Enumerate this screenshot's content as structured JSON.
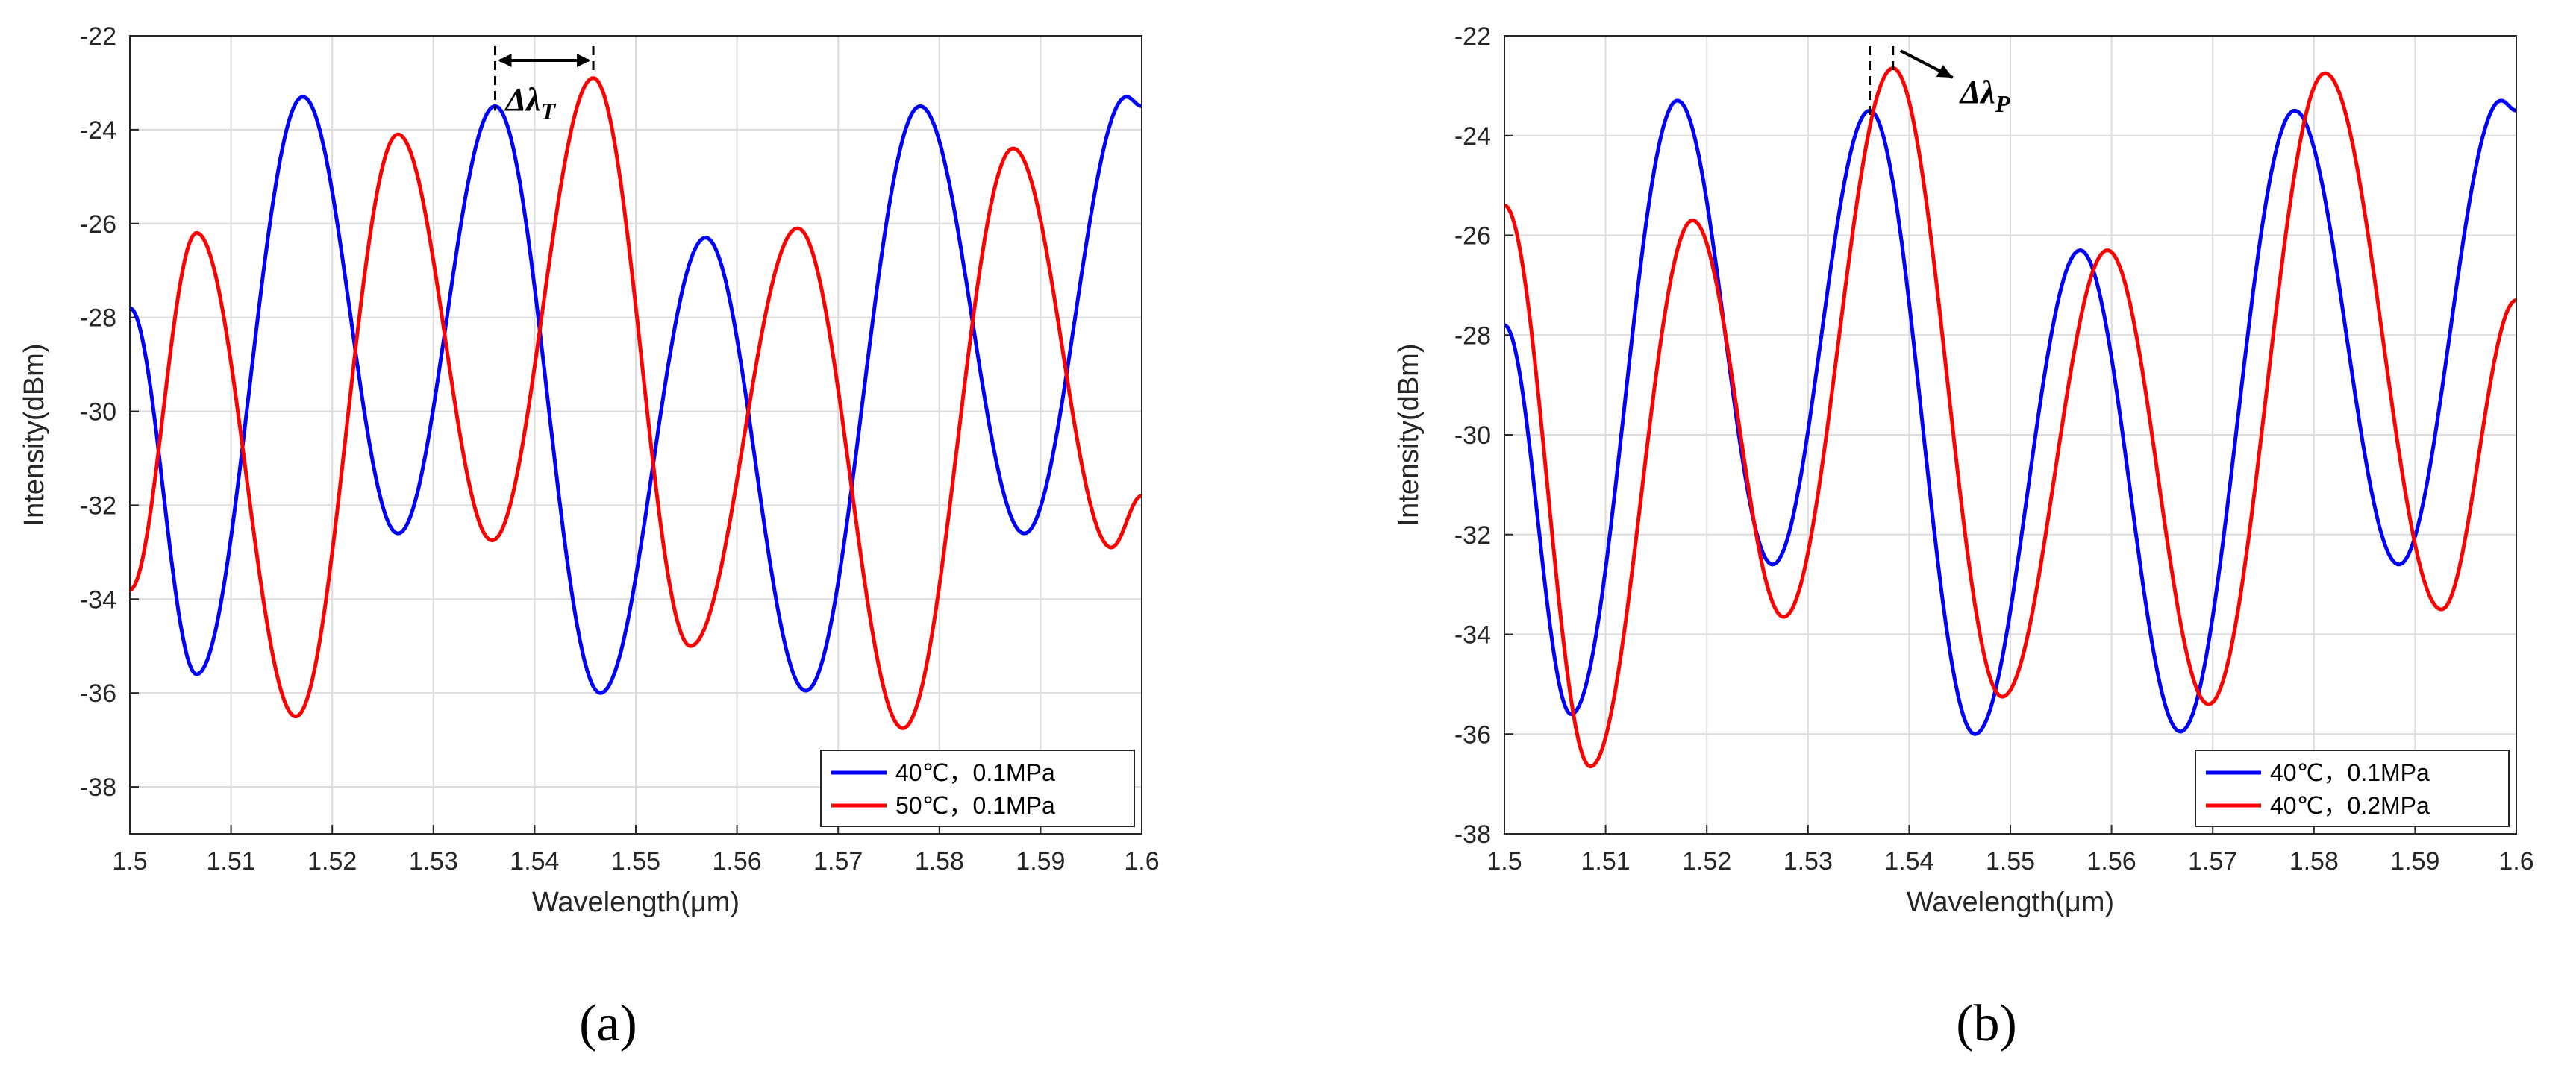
{
  "chart_data": [
    {
      "type": "line",
      "panel_label": "(a)",
      "xlabel": "Wavelength(μm)",
      "ylabel": "Intensity(dBm)",
      "xlim": [
        1.5,
        1.6
      ],
      "ylim": [
        -39,
        -22
      ],
      "xticks": [
        "1.5",
        "1.51",
        "1.52",
        "1.53",
        "1.54",
        "1.55",
        "1.56",
        "1.57",
        "1.58",
        "1.59",
        "1.6"
      ],
      "yticks": [
        "-38",
        "-36",
        "-34",
        "-32",
        "-30",
        "-28",
        "-26",
        "-24",
        "-22"
      ],
      "grid": true,
      "legend_position": "bottom-right",
      "annotation": {
        "text_main": "Δλ",
        "text_sub": "T"
      },
      "series": [
        {
          "name": "40℃，0.1MPa",
          "color": "#0000ff",
          "points": [
            [
              1.5,
              -27.8
            ],
            [
              1.5066,
              -35.6
            ],
            [
              1.5171,
              -23.3
            ],
            [
              1.5265,
              -32.6
            ],
            [
              1.5361,
              -23.5
            ],
            [
              1.5465,
              -36.0
            ],
            [
              1.5569,
              -26.3
            ],
            [
              1.5668,
              -35.95
            ],
            [
              1.5781,
              -23.5
            ],
            [
              1.5884,
              -32.6
            ],
            [
              1.5985,
              -23.3
            ],
            [
              1.6,
              -23.5
            ]
          ]
        },
        {
          "name": "50℃，0.1MPa",
          "color": "#ff0000",
          "points": [
            [
              1.5,
              -33.8
            ],
            [
              1.5066,
              -26.2
            ],
            [
              1.5164,
              -36.5
            ],
            [
              1.5265,
              -24.1
            ],
            [
              1.5358,
              -32.75
            ],
            [
              1.5458,
              -22.9
            ],
            [
              1.5554,
              -35.0
            ],
            [
              1.566,
              -26.1
            ],
            [
              1.5764,
              -36.75
            ],
            [
              1.5873,
              -24.4
            ],
            [
              1.597,
              -32.9
            ],
            [
              1.6,
              -31.8
            ]
          ]
        }
      ]
    },
    {
      "type": "line",
      "panel_label": "(b)",
      "xlabel": "Wavelength(μm)",
      "ylabel": "Intensity(dBm)",
      "xlim": [
        1.5,
        1.6
      ],
      "ylim": [
        -38,
        -22
      ],
      "xticks": [
        "1.5",
        "1.51",
        "1.52",
        "1.53",
        "1.54",
        "1.55",
        "1.56",
        "1.57",
        "1.58",
        "1.59",
        "1.6"
      ],
      "yticks": [
        "-38",
        "-36",
        "-34",
        "-32",
        "-30",
        "-28",
        "-26",
        "-24",
        "-22"
      ],
      "grid": true,
      "legend_position": "bottom-right",
      "annotation": {
        "text_main": "Δλ",
        "text_sub": "P"
      },
      "series": [
        {
          "name": "40℃，0.1MPa",
          "color": "#0000ff",
          "points": [
            [
              1.5,
              -27.8
            ],
            [
              1.5066,
              -35.6
            ],
            [
              1.5171,
              -23.3
            ],
            [
              1.5265,
              -32.6
            ],
            [
              1.5361,
              -23.5
            ],
            [
              1.5465,
              -36.0
            ],
            [
              1.5569,
              -26.3
            ],
            [
              1.5668,
              -35.95
            ],
            [
              1.5781,
              -23.5
            ],
            [
              1.5884,
              -32.6
            ],
            [
              1.5985,
              -23.3
            ],
            [
              1.6,
              -23.5
            ]
          ]
        },
        {
          "name": "40℃，0.2MPa",
          "color": "#ff0000",
          "points": [
            [
              1.5,
              -25.4
            ],
            [
              1.5085,
              -36.65
            ],
            [
              1.5186,
              -25.7
            ],
            [
              1.5276,
              -33.65
            ],
            [
              1.5384,
              -22.65
            ],
            [
              1.5492,
              -35.25
            ],
            [
              1.5596,
              -26.3
            ],
            [
              1.5696,
              -35.4
            ],
            [
              1.5811,
              -22.75
            ],
            [
              1.5926,
              -33.5
            ],
            [
              1.6,
              -27.3
            ]
          ]
        }
      ]
    }
  ]
}
